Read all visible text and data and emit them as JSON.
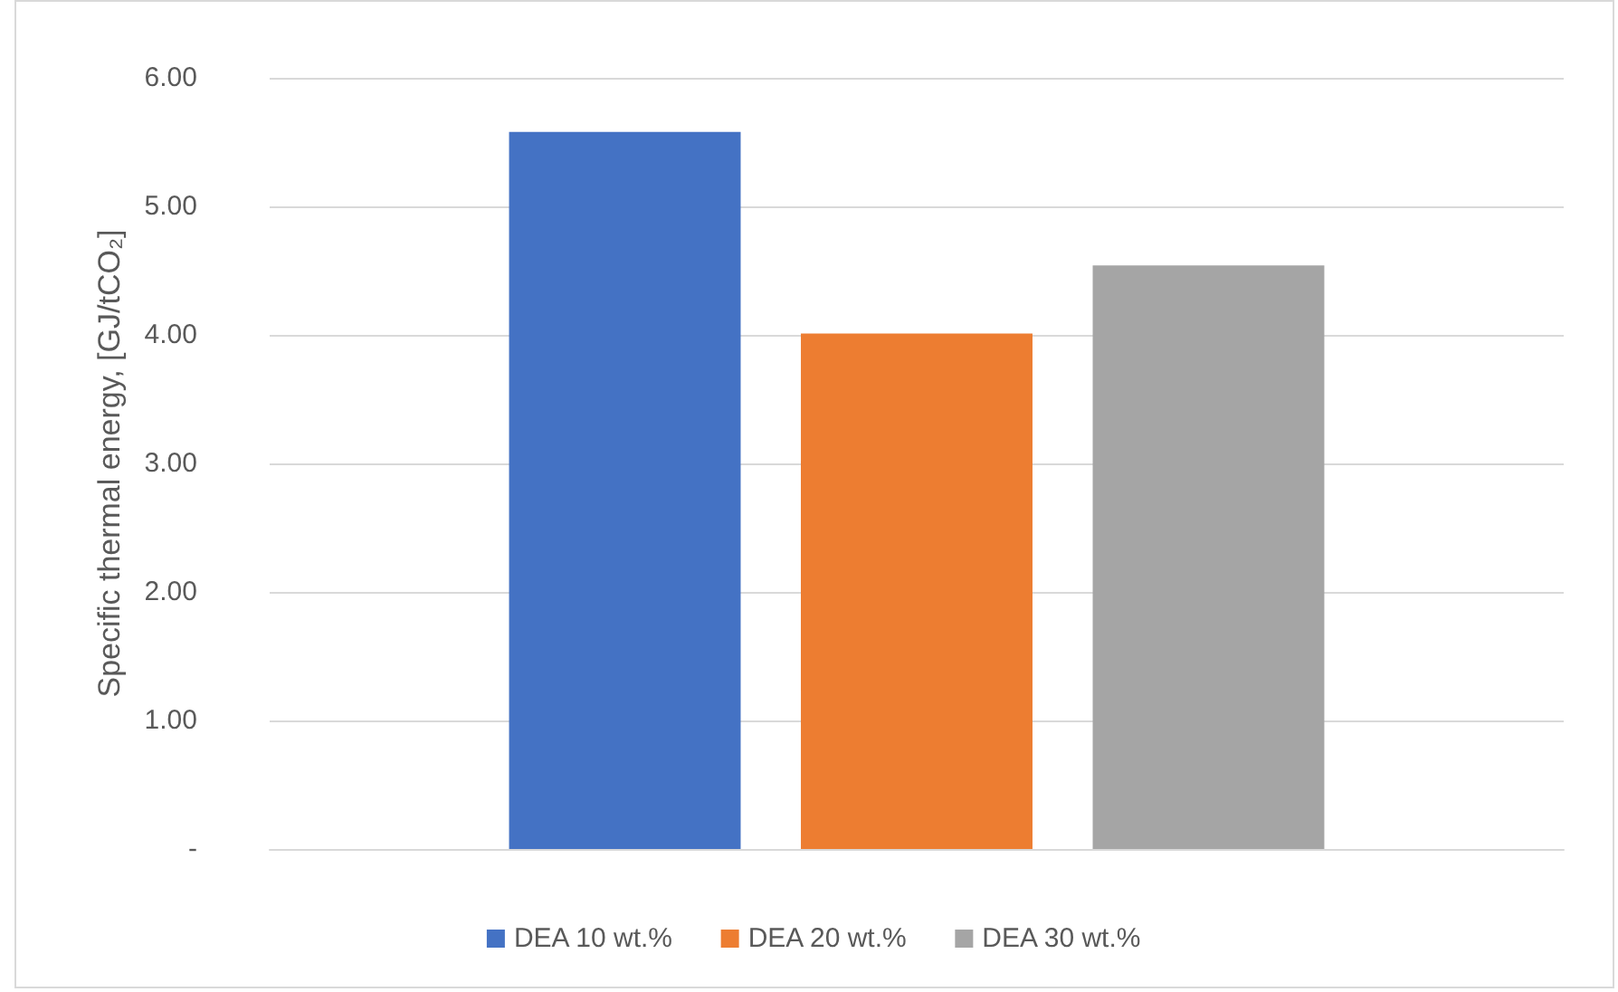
{
  "chart_data": {
    "type": "bar",
    "ylabel": "Specific thermal energy, [GJ/tCO₂]",
    "categories": [
      null
    ],
    "series": [
      {
        "name": "DEA 10 wt.%",
        "color": "#4472c4",
        "values": [
          5.58
        ]
      },
      {
        "name": "DEA 20 wt.%",
        "color": "#ed7d31",
        "values": [
          4.01
        ]
      },
      {
        "name": "DEA 30 wt.%",
        "color": "#a5a5a5",
        "values": [
          4.54
        ]
      }
    ],
    "ylim": [
      0,
      6
    ],
    "yticks": [
      {
        "value": 0,
        "label": "-"
      },
      {
        "value": 1,
        "label": "1.00"
      },
      {
        "value": 2,
        "label": "2.00"
      },
      {
        "value": 3,
        "label": "3.00"
      },
      {
        "value": 4,
        "label": "4.00"
      },
      {
        "value": 5,
        "label": "5.00"
      },
      {
        "value": 6,
        "label": "6.00"
      }
    ],
    "grid": "y",
    "legend": "bottom"
  }
}
